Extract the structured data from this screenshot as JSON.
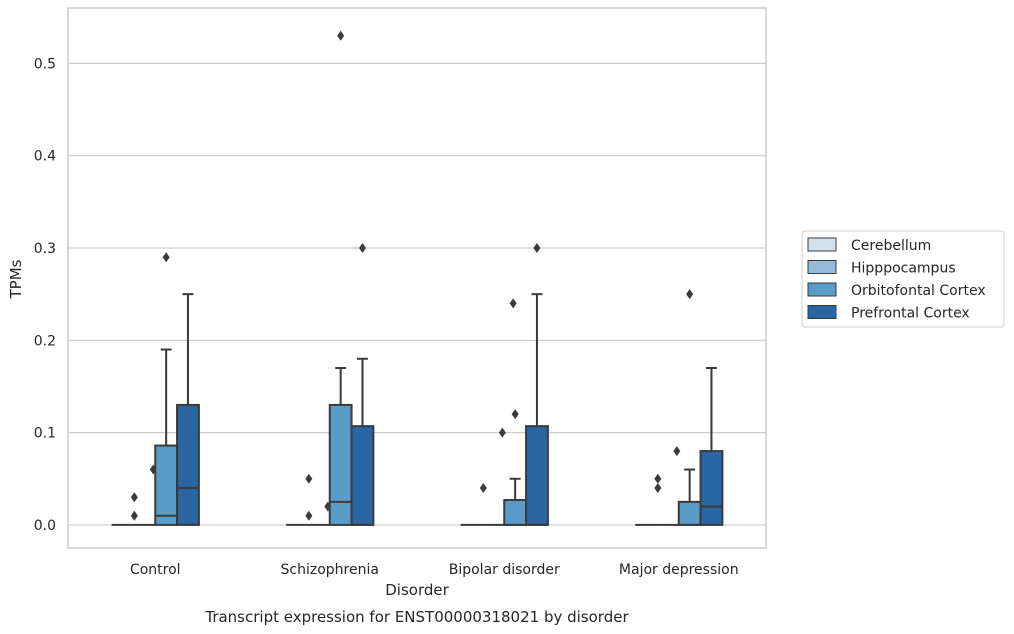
{
  "chart_data": {
    "type": "box",
    "title": "",
    "caption": "Transcript expression for ENST00000318021 by disorder",
    "xlabel": "Disorder",
    "ylabel": "TPMs",
    "ylim": [
      -0.025,
      0.56
    ],
    "yticks": [
      "0.0",
      "0.1",
      "0.2",
      "0.3",
      "0.4",
      "0.5"
    ],
    "grid": "horizontal",
    "legend_position": "right",
    "categories": [
      "Control",
      "Schizophrenia",
      "Bipolar disorder",
      "Major depression"
    ],
    "series": [
      {
        "name": "Cerebellum",
        "color": "#d1e1f0",
        "boxes": [
          {
            "q1": 0,
            "median": 0,
            "q3": 0,
            "whisker_low": 0,
            "whisker_high": 0,
            "outliers": []
          },
          {
            "q1": 0,
            "median": 0,
            "q3": 0,
            "whisker_low": 0,
            "whisker_high": 0,
            "outliers": []
          },
          {
            "q1": 0,
            "median": 0,
            "q3": 0,
            "whisker_low": 0,
            "whisker_high": 0,
            "outliers": []
          },
          {
            "q1": 0,
            "median": 0,
            "q3": 0,
            "whisker_low": 0,
            "whisker_high": 0,
            "outliers": []
          }
        ]
      },
      {
        "name": "Hipppocampus",
        "color": "#93bcdb",
        "boxes": [
          {
            "q1": 0,
            "median": 0,
            "q3": 0,
            "whisker_low": 0,
            "whisker_high": 0,
            "outliers": [
              0.03,
              0.06,
              0.01
            ]
          },
          {
            "q1": 0,
            "median": 0,
            "q3": 0,
            "whisker_low": 0,
            "whisker_high": 0,
            "outliers": [
              0.05,
              0.02,
              0.01
            ]
          },
          {
            "q1": 0,
            "median": 0,
            "q3": 0,
            "whisker_low": 0,
            "whisker_high": 0,
            "outliers": [
              0.04,
              0.1
            ]
          },
          {
            "q1": 0,
            "median": 0,
            "q3": 0,
            "whisker_low": 0,
            "whisker_high": 0,
            "outliers": [
              0.05,
              0.08,
              0.04
            ]
          }
        ]
      },
      {
        "name": "Orbitofontal Cortex",
        "color": "#5a9cc8",
        "boxes": [
          {
            "q1": 0,
            "median": 0.01,
            "q3": 0.086,
            "whisker_low": 0,
            "whisker_high": 0.19,
            "outliers": [
              0.29
            ]
          },
          {
            "q1": 0,
            "median": 0.025,
            "q3": 0.13,
            "whisker_low": 0,
            "whisker_high": 0.17,
            "outliers": [
              0.53
            ]
          },
          {
            "q1": 0,
            "median": 0,
            "q3": 0.027,
            "whisker_low": 0,
            "whisker_high": 0.05,
            "outliers": [
              0.12,
              0.24
            ]
          },
          {
            "q1": 0,
            "median": 0,
            "q3": 0.025,
            "whisker_low": 0,
            "whisker_high": 0.06,
            "outliers": [
              0.25
            ]
          }
        ]
      },
      {
        "name": "Prefrontal Cortex",
        "color": "#2a66a4",
        "boxes": [
          {
            "q1": 0,
            "median": 0.04,
            "q3": 0.13,
            "whisker_low": 0,
            "whisker_high": 0.25,
            "outliers": []
          },
          {
            "q1": 0,
            "median": 0,
            "q3": 0.107,
            "whisker_low": 0,
            "whisker_high": 0.18,
            "outliers": [
              0.3
            ]
          },
          {
            "q1": 0,
            "median": 0,
            "q3": 0.107,
            "whisker_low": 0,
            "whisker_high": 0.25,
            "outliers": [
              0.3
            ]
          },
          {
            "q1": 0,
            "median": 0.02,
            "q3": 0.08,
            "whisker_low": 0,
            "whisker_high": 0.17,
            "outliers": []
          }
        ]
      }
    ]
  }
}
